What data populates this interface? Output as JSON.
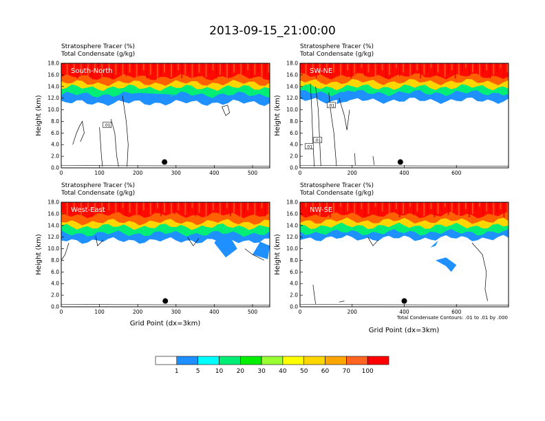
{
  "figure": {
    "title": "2013-09-15_21:00:00",
    "subtitle1": "Stratosphere Tracer   (%)",
    "subtitle2": "Total Condensate   (g/kg)",
    "x_axis_label": "Grid Point (dx=3km)",
    "y_axis_label": "Height (km)",
    "contour_note": "Total Condensate Contours: .01 to .01 by .000"
  },
  "chart_data": [
    {
      "type": "heatmap",
      "label": "South-North",
      "x_ticks": [
        0,
        100,
        200,
        300,
        400,
        500
      ],
      "xlim": [
        0,
        545
      ],
      "ylim": [
        0,
        18
      ],
      "y_ticks": [
        "0.0",
        "2.0",
        "4.0",
        "6.0",
        "8.0",
        "10.0",
        "12.0",
        "14.0",
        "16.0",
        "18.0"
      ],
      "dot": [
        270,
        1.0
      ],
      "contour_labels": [
        {
          "text": ".01",
          "x": 120,
          "y": 7.4
        }
      ],
      "tracer_bands_top_to_bottom_km": [
        [
          15.6,
          18
        ],
        [
          14.6,
          15.6
        ],
        [
          13.8,
          14.6
        ],
        [
          12.6,
          13.8
        ],
        [
          11.2,
          12.6
        ]
      ]
    },
    {
      "type": "heatmap",
      "label": "SW-NE",
      "x_ticks": [
        0,
        200,
        400,
        600
      ],
      "xlim": [
        0,
        800
      ],
      "ylim": [
        0,
        18
      ],
      "y_ticks": [
        "0.0",
        "2.0",
        "4.0",
        "6.0",
        "8.0",
        "10.0",
        "12.0",
        "14.0",
        "16.0",
        "18.0"
      ],
      "dot": [
        385,
        1.0
      ],
      "contour_labels": [
        {
          "text": ".01",
          "x": 120,
          "y": 10.8
        },
        {
          "text": ".01",
          "x": 68,
          "y": 4.8
        },
        {
          "text": ".01",
          "x": 35,
          "y": 3.7
        }
      ],
      "tracer_bands_top_to_bottom_km": [
        [
          15.8,
          18
        ],
        [
          14.8,
          15.8
        ],
        [
          13.9,
          14.8
        ],
        [
          12.9,
          13.9
        ],
        [
          11.6,
          12.9
        ]
      ]
    },
    {
      "type": "heatmap",
      "label": "West-East",
      "x_ticks": [
        0,
        100,
        200,
        300,
        400,
        500
      ],
      "xlim": [
        0,
        545
      ],
      "ylim": [
        0,
        18
      ],
      "y_ticks": [
        "0.0",
        "2.0",
        "4.0",
        "6.0",
        "8.0",
        "10.0",
        "12.0",
        "14.0",
        "16.0",
        "18.0"
      ],
      "dot": [
        272,
        1.0
      ],
      "contour_labels": [],
      "tracer_bands_top_to_bottom_km": [
        [
          15.8,
          18
        ],
        [
          14.6,
          15.8
        ],
        [
          13.8,
          14.6
        ],
        [
          12.6,
          13.8
        ],
        [
          11.4,
          12.6
        ]
      ]
    },
    {
      "type": "heatmap",
      "label": "NW-SE",
      "x_ticks": [
        0,
        200,
        400,
        600
      ],
      "xlim": [
        0,
        800
      ],
      "ylim": [
        0,
        18
      ],
      "y_ticks": [
        "0.0",
        "2.0",
        "4.0",
        "6.0",
        "8.0",
        "10.0",
        "12.0",
        "14.0",
        "16.0",
        "18.0"
      ],
      "dot": [
        400,
        1.0
      ],
      "contour_labels": [],
      "tracer_bands_top_to_bottom_km": [
        [
          15.8,
          18
        ],
        [
          14.8,
          15.8
        ],
        [
          13.9,
          14.8
        ],
        [
          12.8,
          13.9
        ],
        [
          11.8,
          12.8
        ]
      ]
    }
  ],
  "colorbar": {
    "labels": [
      "1",
      "5",
      "10",
      "20",
      "30",
      "40",
      "50",
      "60",
      "70",
      "100"
    ],
    "colors": [
      "#ffffff",
      "#1e90ff",
      "#00ffff",
      "#00ee76",
      "#00ee00",
      "#9aff32",
      "#ffff00",
      "#ffd700",
      "#ffa500",
      "#ff6420",
      "#ff0000"
    ]
  },
  "tracer_colors": {
    "band1": "#ff0a00",
    "band2": "#ff6000",
    "band3": "#ffd700",
    "band4": "#00ee76",
    "band5": "#1e90ff",
    "stripe_light": "#ff5a20",
    "stripe_dark": "#e80000"
  }
}
